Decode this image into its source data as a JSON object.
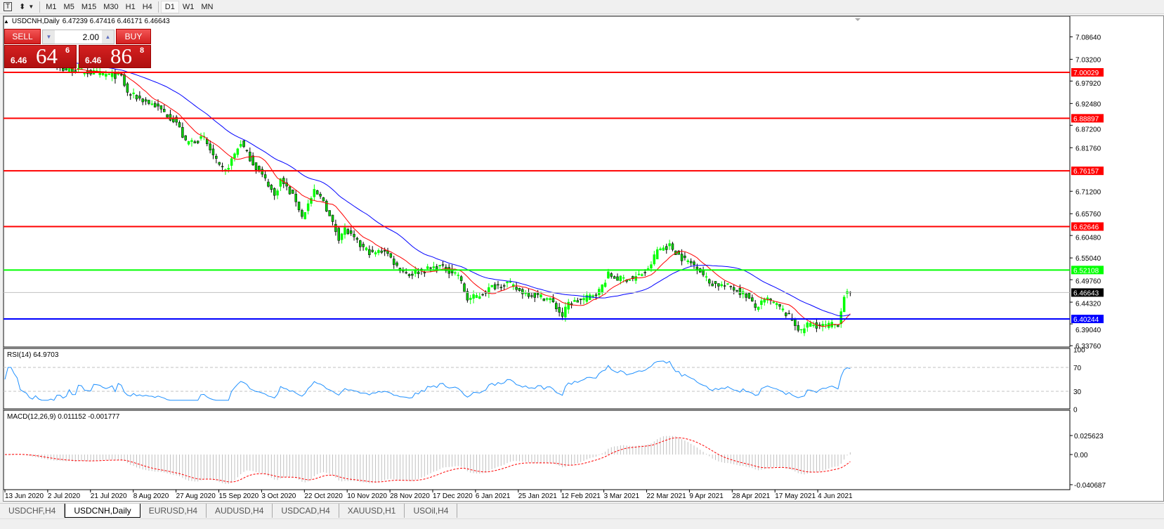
{
  "toolbar": {
    "text_tool": "T",
    "timeframes": [
      "M1",
      "M5",
      "M15",
      "M30",
      "H1",
      "H4",
      "D1",
      "W1",
      "MN"
    ],
    "active_timeframe": "D1"
  },
  "chart": {
    "title": "USDCNH,Daily",
    "ohlc": "6.47239 6.47416 6.46171 6.46643"
  },
  "trade_panel": {
    "sell_label": "SELL",
    "buy_label": "BUY",
    "lot": "2.00",
    "sell": {
      "prefix": "6.46",
      "big": "64",
      "sup": "6"
    },
    "buy": {
      "prefix": "6.46",
      "big": "86",
      "sup": "8"
    }
  },
  "price_axis": [
    "7.08640",
    "7.03200",
    "6.97920",
    "6.92480",
    "6.87200",
    "6.81760",
    "6.71200",
    "6.65760",
    "6.60480",
    "6.55040",
    "6.49760",
    "6.44320",
    "6.39040",
    "6.33760"
  ],
  "levels": [
    {
      "price": "7.00029",
      "color": "#ff0000"
    },
    {
      "price": "6.88897",
      "color": "#ff0000"
    },
    {
      "price": "6.76157",
      "color": "#ff0000"
    },
    {
      "price": "6.62646",
      "color": "#ff0000"
    },
    {
      "price": "6.52108",
      "color": "#00ff00"
    },
    {
      "price": "6.40244",
      "color": "#0000ff"
    },
    {
      "price": "6.46643",
      "color": "#c0c0c0",
      "current": true
    }
  ],
  "rsi": {
    "label": "RSI(14) 64.9703",
    "axis": [
      "100",
      "70",
      "30",
      "0"
    ],
    "color": "#1e90ff"
  },
  "macd": {
    "label": "MACD(12,26,9) 0.011152 -0.001777",
    "axis": [
      "0.025623",
      "0.00",
      "-0.040687"
    ],
    "signal_color": "#ff0000",
    "hist_color": "#c0c0c0"
  },
  "ma_colors": {
    "fast": "#ff0000",
    "slow": "#0000ff"
  },
  "candle_colors": {
    "up": "#00ff00",
    "down": "#00cc00"
  },
  "date_axis": [
    "13 Jun 2020",
    "2 Jul 2020",
    "21 Jul 2020",
    "8 Aug 2020",
    "27 Aug 2020",
    "15 Sep 2020",
    "3 Oct 2020",
    "22 Oct 2020",
    "10 Nov 2020",
    "28 Nov 2020",
    "17 Dec 2020",
    "6 Jan 2021",
    "25 Jan 2021",
    "12 Feb 2021",
    "3 Mar 2021",
    "22 Mar 2021",
    "9 Apr 2021",
    "28 Apr 2021",
    "17 May 2021",
    "4 Jun 2021"
  ],
  "price_path": [
    [
      0,
      7.05
    ],
    [
      17,
      7.01
    ],
    [
      28,
      7.0
    ],
    [
      38,
      6.99
    ],
    [
      40,
      6.95
    ],
    [
      49,
      6.92
    ],
    [
      56,
      6.88
    ],
    [
      59,
      6.83
    ],
    [
      65,
      6.84
    ],
    [
      70,
      6.77
    ],
    [
      72,
      6.76
    ],
    [
      77,
      6.83
    ],
    [
      81,
      6.78
    ],
    [
      86,
      6.73
    ],
    [
      88,
      6.7
    ],
    [
      90,
      6.74
    ],
    [
      95,
      6.69
    ],
    [
      97,
      6.65
    ],
    [
      101,
      6.71
    ],
    [
      104,
      6.69
    ],
    [
      106,
      6.65
    ],
    [
      109,
      6.6
    ],
    [
      111,
      6.62
    ],
    [
      116,
      6.58
    ],
    [
      120,
      6.56
    ],
    [
      124,
      6.57
    ],
    [
      128,
      6.53
    ],
    [
      132,
      6.51
    ],
    [
      136,
      6.52
    ],
    [
      142,
      6.53
    ],
    [
      148,
      6.51
    ],
    [
      151,
      6.45
    ],
    [
      155,
      6.46
    ],
    [
      159,
      6.48
    ],
    [
      164,
      6.49
    ],
    [
      168,
      6.47
    ],
    [
      173,
      6.46
    ],
    [
      178,
      6.45
    ],
    [
      182,
      6.41
    ],
    [
      184,
      6.44
    ],
    [
      189,
      6.45
    ],
    [
      194,
      6.47
    ],
    [
      197,
      6.51
    ],
    [
      200,
      6.5
    ],
    [
      205,
      6.5
    ],
    [
      210,
      6.52
    ],
    [
      213,
      6.57
    ],
    [
      217,
      6.58
    ],
    [
      221,
      6.55
    ],
    [
      226,
      6.53
    ],
    [
      230,
      6.49
    ],
    [
      237,
      6.48
    ],
    [
      242,
      6.46
    ],
    [
      245,
      6.43
    ],
    [
      249,
      6.45
    ],
    [
      253,
      6.43
    ],
    [
      257,
      6.4
    ],
    [
      260,
      6.37
    ],
    [
      262,
      6.39
    ],
    [
      267,
      6.385
    ],
    [
      272,
      6.39
    ],
    [
      274,
      6.46
    ],
    [
      276,
      6.466
    ]
  ],
  "tabs": [
    "USDCHF,H4",
    "USDCNH,Daily",
    "EURUSD,H4",
    "AUDUSD,H4",
    "USDCAD,H4",
    "XAUUSD,H1",
    "USOil,H4"
  ],
  "active_tab": "USDCNH,Daily"
}
